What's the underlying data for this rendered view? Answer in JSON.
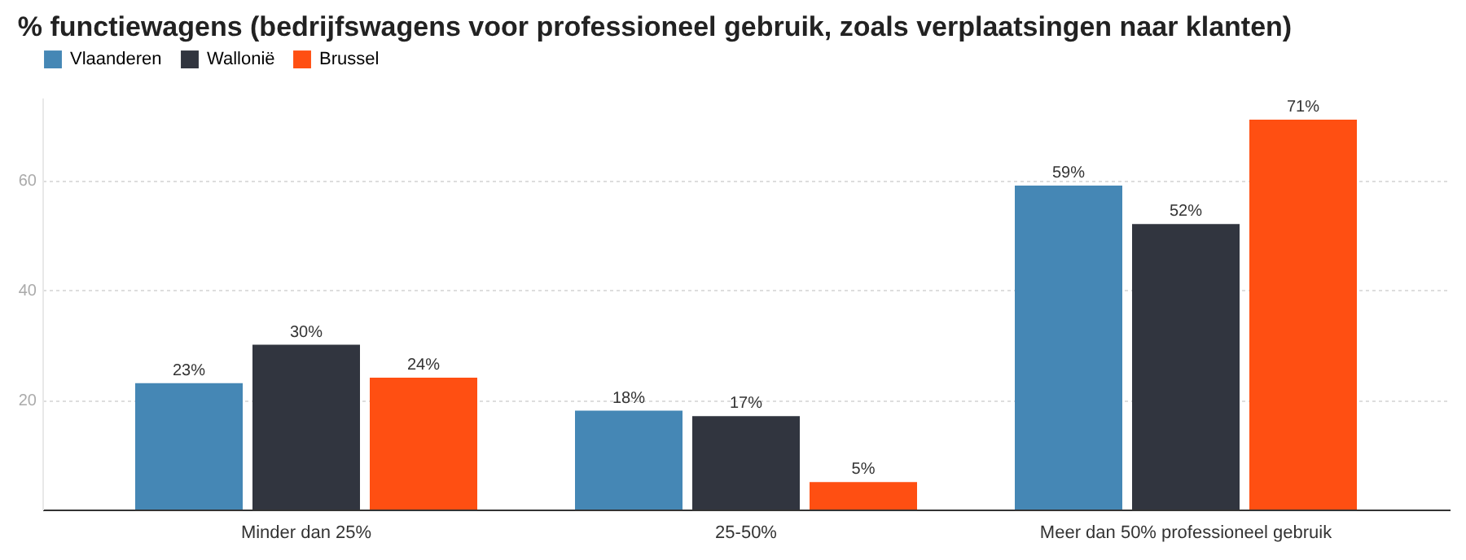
{
  "chart_data": {
    "type": "bar",
    "title": "% functiewagens (bedrijfswagens voor professioneel gebruik, zoals verplaatsingen naar klanten)",
    "categories": [
      "Minder dan 25%",
      "25-50%",
      "Meer dan 50% professioneel gebruik"
    ],
    "series": [
      {
        "name": "Vlaanderen",
        "color": "#4587b5",
        "values": [
          23,
          18,
          59
        ],
        "value_labels": [
          "23%",
          "18%",
          "59%"
        ]
      },
      {
        "name": "Wallonië",
        "color": "#31353f",
        "values": [
          30,
          17,
          52
        ],
        "value_labels": [
          "30%",
          "17%",
          "52%"
        ]
      },
      {
        "name": "Brussel",
        "color": "#ff4f12",
        "values": [
          24,
          5,
          71
        ],
        "value_labels": [
          "24%",
          "5%",
          "71%"
        ]
      }
    ],
    "ylim": [
      0,
      75
    ],
    "yticks": [
      20,
      40,
      60
    ],
    "grid": "y",
    "legend": "top left"
  }
}
